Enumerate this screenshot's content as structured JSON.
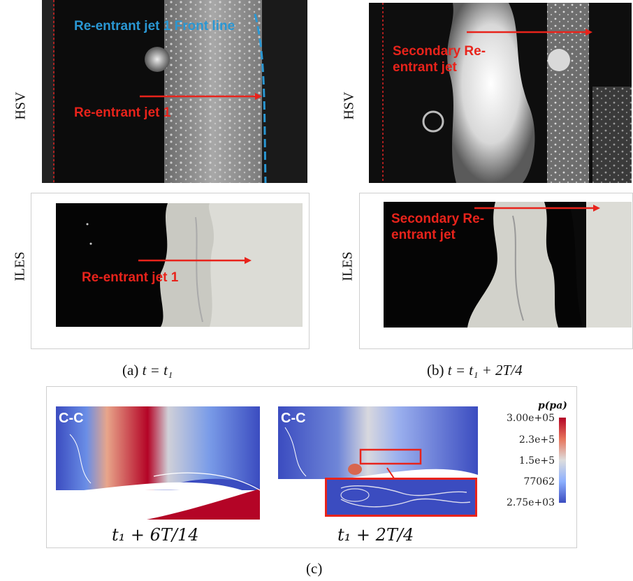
{
  "figure": {
    "rows": {
      "hsv": "HSV",
      "iles": "ILES"
    },
    "panel_a": {
      "hsv_front_label": "Re-entrant jet 1 Front line",
      "hsv_jet_label": "Re-entrant jet 1",
      "iles_jet_label": "Re-entrant jet 1",
      "caption_prefix": "(a)",
      "caption_formula": "t = t₁"
    },
    "panel_b": {
      "hsv_jet_label": "Secondary Re-entrant jet",
      "iles_jet_label": "Secondary Re-entrant jet",
      "caption_prefix": "(b)",
      "caption_formula": "t = t₁ + 2T/4"
    },
    "panel_c": {
      "left_section": "C-C",
      "right_section": "C-C",
      "left_time": "t₁ + 6T/14",
      "right_time": "t₁ + 2T/4",
      "caption": "(c)",
      "colorbar": {
        "title": "p(pa)",
        "ticks": [
          "3.00e+05",
          "2.3e+5",
          "1.5e+5",
          "77062",
          "2.75e+03"
        ],
        "colors": {
          "high": "#b40426",
          "mid": "#dddddd",
          "low": "#3b4cc0"
        }
      }
    }
  }
}
